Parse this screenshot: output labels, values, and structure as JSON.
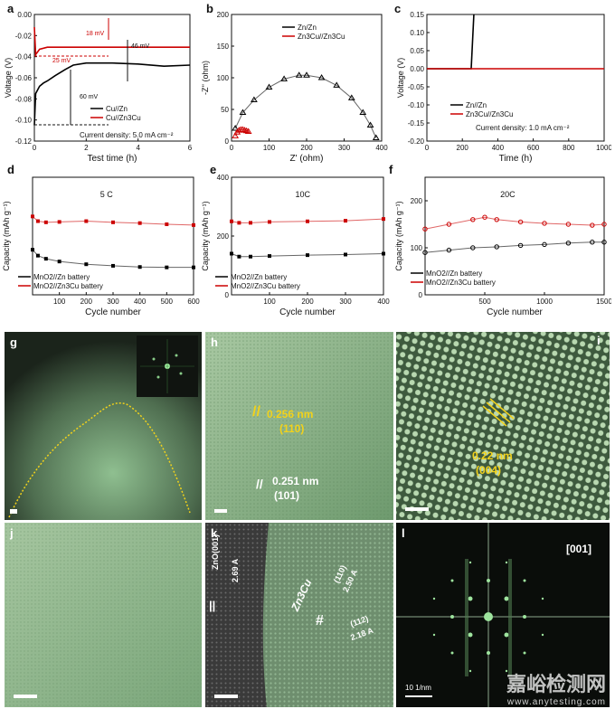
{
  "chart_data": [
    {
      "panel": "a",
      "type": "line",
      "xlabel": "Test time (h)",
      "ylabel": "Voltage (V)",
      "xlim": [
        0,
        6
      ],
      "ylim": [
        -0.12,
        0.0
      ],
      "xticks": [
        "0",
        "2",
        "4",
        "6"
      ],
      "yticks": [
        "0.00",
        "-0.02",
        "-0.04",
        "-0.06",
        "-0.08",
        "-0.10",
        "-0.12"
      ],
      "series": [
        {
          "name": "Cu//Zn",
          "color": "#000000",
          "x": [
            0,
            0.05,
            0.2,
            0.35,
            0.5,
            0.8,
            1.0,
            1.2,
            1.5,
            2.0,
            3.0,
            4.0,
            5.0,
            6.0
          ],
          "y": [
            -0.105,
            -0.075,
            -0.068,
            -0.065,
            -0.063,
            -0.058,
            -0.055,
            -0.052,
            -0.048,
            -0.046,
            -0.046,
            -0.047,
            -0.049,
            -0.048
          ]
        },
        {
          "name": "Cu//Zn3Cu",
          "color": "#cc0000",
          "x": [
            0,
            0.05,
            0.2,
            0.5,
            1.0,
            2.0,
            3.0,
            4.0,
            5.0,
            6.0
          ],
          "y": [
            -0.012,
            -0.038,
            -0.033,
            -0.031,
            -0.031,
            -0.031,
            -0.031,
            -0.031,
            -0.031,
            -0.031
          ]
        }
      ],
      "annotations": [
        "18 mV",
        "46 mV",
        "25 mV",
        "60 mV",
        "Current density: 5.0 mA cm⁻²"
      ]
    },
    {
      "panel": "b",
      "type": "scatter",
      "xlabel": "Z' (ohm)",
      "ylabel": "-Z'' (ohm)",
      "xlim": [
        0,
        400
      ],
      "ylim": [
        0,
        200
      ],
      "xticks": [
        "0",
        "100",
        "200",
        "300",
        "400"
      ],
      "yticks": [
        "0",
        "50",
        "100",
        "150",
        "200"
      ],
      "series": [
        {
          "name": "Zn/Zn",
          "color": "#000000",
          "x": [
            10,
            30,
            60,
            100,
            140,
            180,
            200,
            240,
            280,
            320,
            350,
            370,
            385
          ],
          "y": [
            20,
            45,
            65,
            85,
            98,
            104,
            104,
            100,
            88,
            68,
            45,
            25,
            5
          ]
        },
        {
          "name": "Zn3Cu//Zn3Cu",
          "color": "#cc0000",
          "x": [
            10,
            15,
            20,
            25,
            30,
            35,
            40,
            45
          ],
          "y": [
            8,
            14,
            17,
            18,
            18,
            17,
            16,
            15
          ]
        }
      ]
    },
    {
      "panel": "c",
      "type": "line",
      "xlabel": "Time (h)",
      "ylabel": "Voltage (V)",
      "xlim": [
        0,
        1000
      ],
      "ylim": [
        -0.2,
        0.15
      ],
      "xticks": [
        "0",
        "200",
        "400",
        "600",
        "800",
        "1000"
      ],
      "yticks": [
        "0.15",
        "0.10",
        "0.05",
        "0.00",
        "-0.05",
        "-0.10",
        "-0.15",
        "-0.20"
      ],
      "series": [
        {
          "name": "Zn//Zn",
          "color": "#000000",
          "x": [
            0,
            250,
            265
          ],
          "y": [
            0.0,
            0.0,
            0.15
          ]
        },
        {
          "name": "Zn3Cu//Zn3Cu",
          "color": "#cc0000",
          "x": [
            0,
            1000
          ],
          "y": [
            0.0,
            0.0
          ]
        }
      ],
      "annotations": [
        "Current density: 1.0 mA cm⁻²"
      ]
    },
    {
      "panel": "d",
      "type": "scatter",
      "xlabel": "Cycle number",
      "ylabel": "Capacity (mAh g⁻¹)",
      "xlim": [
        0,
        600
      ],
      "ylim": [
        0,
        300
      ],
      "xticks": [
        "100",
        "200",
        "300",
        "400",
        "500",
        "600"
      ],
      "annotation": "5 C",
      "series": [
        {
          "name": "MnO2//Zn battery",
          "color": "#000000",
          "x": [
            0,
            20,
            50,
            100,
            200,
            300,
            400,
            500,
            600
          ],
          "y": [
            115,
            100,
            92,
            85,
            78,
            74,
            71,
            70,
            70
          ]
        },
        {
          "name": "MnO2//Zn3Cu battery",
          "color": "#cc0000",
          "x": [
            0,
            20,
            50,
            100,
            200,
            300,
            400,
            500,
            600
          ],
          "y": [
            200,
            188,
            185,
            186,
            188,
            185,
            183,
            180,
            178
          ]
        }
      ]
    },
    {
      "panel": "e",
      "type": "scatter",
      "xlabel": "Cycle number",
      "ylabel": "Capacity (mAh g⁻¹)",
      "xlim": [
        0,
        400
      ],
      "ylim": [
        0,
        400
      ],
      "xticks": [
        "100",
        "200",
        "300",
        "400"
      ],
      "yticks": [
        "0",
        "200",
        "400"
      ],
      "annotation": "10C",
      "series": [
        {
          "name": "MnO2//Zn battery",
          "color": "#000000",
          "x": [
            0,
            20,
            50,
            100,
            200,
            300,
            400
          ],
          "y": [
            140,
            130,
            130,
            132,
            135,
            137,
            140
          ]
        },
        {
          "name": "MnO2//Zn3Cu battery",
          "color": "#cc0000",
          "x": [
            0,
            20,
            50,
            100,
            200,
            300,
            400
          ],
          "y": [
            250,
            245,
            245,
            248,
            250,
            252,
            258
          ]
        }
      ]
    },
    {
      "panel": "f",
      "type": "scatter",
      "xlabel": "Cycle number",
      "ylabel": "Capacity (mAh g⁻¹)",
      "xlim": [
        0,
        1500
      ],
      "ylim": [
        0,
        250
      ],
      "xticks": [
        "500",
        "1000",
        "1500"
      ],
      "yticks": [
        "0",
        "100",
        "200"
      ],
      "annotation": "20C",
      "series": [
        {
          "name": "MnO2//Zn battery",
          "color": "#000000",
          "x": [
            0,
            200,
            400,
            600,
            800,
            1000,
            1200,
            1400,
            1500
          ],
          "y": [
            90,
            95,
            100,
            102,
            105,
            107,
            110,
            112,
            112
          ]
        },
        {
          "name": "MnO2//Zn3Cu battery",
          "color": "#cc0000",
          "x": [
            0,
            200,
            400,
            500,
            600,
            800,
            1000,
            1200,
            1400,
            1500
          ],
          "y": [
            140,
            150,
            160,
            165,
            160,
            155,
            152,
            150,
            148,
            150
          ]
        }
      ]
    }
  ],
  "panels": {
    "a": {
      "letter": "a"
    },
    "b": {
      "letter": "b"
    },
    "c": {
      "letter": "c"
    },
    "d": {
      "letter": "d"
    },
    "e": {
      "letter": "e"
    },
    "f": {
      "letter": "f"
    },
    "g": {
      "letter": "g"
    },
    "h": {
      "letter": "h",
      "label1": "0.256 nm",
      "label1b": "(110)",
      "label2": "0.251 nm",
      "label2b": "(101)"
    },
    "i": {
      "letter": "i",
      "label1": "0.22 nm",
      "label1b": "(004)"
    },
    "j": {
      "letter": "j"
    },
    "k": {
      "letter": "k",
      "zno": "ZnO(001)",
      "zno_d": "2.69 A",
      "zn3cu": "Zn3Cu",
      "plane1": "(110)",
      "plane1_d": "2.50 A",
      "plane2": "(112)",
      "plane2_d": "2.18 A"
    },
    "l": {
      "letter": "l",
      "zone": "[001]",
      "scale": "10 1/nm"
    }
  },
  "watermark": {
    "title": "嘉峪检测网",
    "url": "www.anytesting.com"
  },
  "colors": {
    "red": "#cc0000",
    "black": "#000000",
    "micro_green": "#7fa880",
    "yellow": "#f2d21b"
  }
}
